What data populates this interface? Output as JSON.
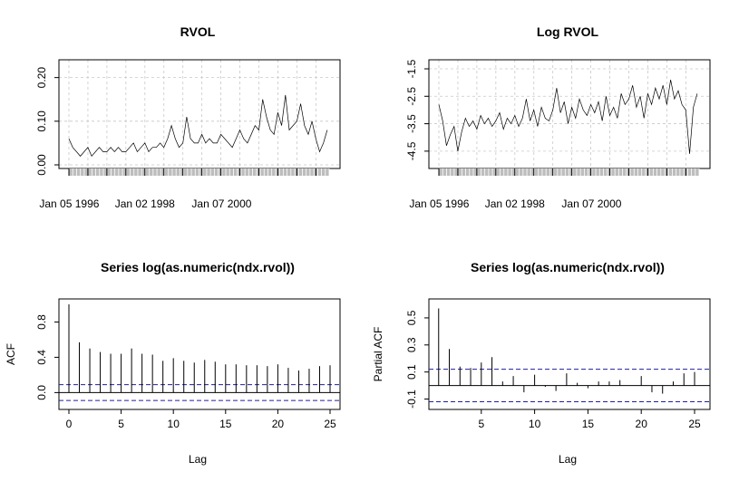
{
  "chart_data": [
    {
      "type": "line",
      "title": "RVOL",
      "xlabel": "",
      "ylabel": "",
      "ylim": [
        0,
        0.22
      ],
      "yticks": [
        "0.00",
        "0.10",
        "0.20"
      ],
      "ytick_values": [
        0.0,
        0.1,
        0.2
      ],
      "xtick_labels": [
        "Jan 05 1996",
        "Jan 02 1998",
        "Jan 07 2000"
      ],
      "xrange": [
        1996.0,
        2002.85
      ],
      "xtick_values": [
        1996.01,
        1998.0,
        2000.02
      ],
      "grid": true,
      "series": [
        {
          "x": [
            1996.0,
            1996.1,
            1996.2,
            1996.3,
            1996.4,
            1996.5,
            1996.6,
            1996.7,
            1996.8,
            1996.9,
            1997.0,
            1997.1,
            1997.2,
            1997.3,
            1997.4,
            1997.5,
            1997.6,
            1997.7,
            1997.8,
            1997.9,
            1998.0,
            1998.1,
            1998.2,
            1998.3,
            1998.4,
            1998.5,
            1998.6,
            1998.7,
            1998.8,
            1998.9,
            1999.0,
            1999.1,
            1999.2,
            1999.3,
            1999.4,
            1999.5,
            1999.6,
            1999.7,
            1999.8,
            1999.9,
            2000.0,
            2000.1,
            2000.2,
            2000.3,
            2000.4,
            2000.5,
            2000.6,
            2000.7,
            2000.8,
            2000.9,
            2001.0,
            2001.1,
            2001.2,
            2001.3,
            2001.4,
            2001.5,
            2001.6,
            2001.7,
            2001.8,
            2001.9,
            2002.0,
            2002.1,
            2002.2,
            2002.3,
            2002.4,
            2002.5,
            2002.6,
            2002.7,
            2002.8
          ],
          "values": [
            0.06,
            0.04,
            0.03,
            0.02,
            0.03,
            0.04,
            0.02,
            0.03,
            0.04,
            0.03,
            0.03,
            0.04,
            0.03,
            0.04,
            0.03,
            0.03,
            0.04,
            0.05,
            0.03,
            0.04,
            0.05,
            0.03,
            0.04,
            0.04,
            0.05,
            0.04,
            0.06,
            0.09,
            0.06,
            0.04,
            0.05,
            0.11,
            0.06,
            0.05,
            0.05,
            0.07,
            0.05,
            0.06,
            0.05,
            0.05,
            0.07,
            0.06,
            0.05,
            0.04,
            0.06,
            0.08,
            0.06,
            0.05,
            0.07,
            0.09,
            0.08,
            0.15,
            0.11,
            0.08,
            0.07,
            0.12,
            0.09,
            0.16,
            0.08,
            0.09,
            0.1,
            0.14,
            0.09,
            0.07,
            0.1,
            0.06,
            0.03,
            0.05,
            0.08
          ]
        }
      ]
    },
    {
      "type": "line",
      "title": "Log RVOL",
      "xlabel": "",
      "ylabel": "",
      "ylim": [
        -5.0,
        -1.5
      ],
      "yticks": [
        "-4.5",
        "-3.5",
        "-2.5",
        "-1.5"
      ],
      "ytick_values": [
        -4.5,
        -3.5,
        -2.5,
        -1.5
      ],
      "xtick_labels": [
        "Jan 05 1996",
        "Jan 02 1998",
        "Jan 07 2000"
      ],
      "xrange": [
        1996.0,
        2002.85
      ],
      "xtick_values": [
        1996.01,
        1998.0,
        2000.02
      ],
      "grid": true,
      "series": [
        {
          "x": [
            1996.0,
            1996.1,
            1996.2,
            1996.3,
            1996.4,
            1996.5,
            1996.6,
            1996.7,
            1996.8,
            1996.9,
            1997.0,
            1997.1,
            1997.2,
            1997.3,
            1997.4,
            1997.5,
            1997.6,
            1997.7,
            1997.8,
            1997.9,
            1998.0,
            1998.1,
            1998.2,
            1998.3,
            1998.4,
            1998.5,
            1998.6,
            1998.7,
            1998.8,
            1998.9,
            1999.0,
            1999.1,
            1999.2,
            1999.3,
            1999.4,
            1999.5,
            1999.6,
            1999.7,
            1999.8,
            1999.9,
            2000.0,
            2000.1,
            2000.2,
            2000.3,
            2000.4,
            2000.5,
            2000.6,
            2000.7,
            2000.8,
            2000.9,
            2001.0,
            2001.1,
            2001.2,
            2001.3,
            2001.4,
            2001.5,
            2001.6,
            2001.7,
            2001.8,
            2001.9,
            2002.0,
            2002.1,
            2002.2,
            2002.3,
            2002.4,
            2002.5,
            2002.6,
            2002.7,
            2002.8
          ],
          "values": [
            -2.8,
            -3.4,
            -4.3,
            -3.9,
            -3.6,
            -4.5,
            -3.8,
            -3.3,
            -3.6,
            -3.4,
            -3.7,
            -3.2,
            -3.5,
            -3.3,
            -3.6,
            -3.4,
            -3.1,
            -3.7,
            -3.3,
            -3.5,
            -3.2,
            -3.6,
            -3.3,
            -2.6,
            -3.4,
            -3.0,
            -3.6,
            -2.9,
            -3.3,
            -3.4,
            -3.0,
            -2.2,
            -3.1,
            -2.7,
            -3.5,
            -2.9,
            -3.3,
            -2.6,
            -3.0,
            -3.2,
            -2.8,
            -3.1,
            -2.7,
            -3.4,
            -2.5,
            -3.2,
            -2.9,
            -3.3,
            -2.4,
            -2.8,
            -2.6,
            -2.1,
            -2.9,
            -2.5,
            -3.3,
            -2.4,
            -2.8,
            -2.2,
            -2.6,
            -2.1,
            -2.8,
            -1.9,
            -2.6,
            -2.3,
            -2.8,
            -3.0,
            -4.6,
            -2.9,
            -2.4
          ]
        }
      ]
    },
    {
      "type": "bar",
      "title": "Series  log(as.numeric(ndx.rvol))",
      "xlabel": "Lag",
      "ylabel": "ACF",
      "xlim": [
        0,
        25
      ],
      "ylim": [
        -0.15,
        1.0
      ],
      "xticks": [
        "0",
        "5",
        "10",
        "15",
        "20",
        "25"
      ],
      "xtick_values": [
        0,
        5,
        10,
        15,
        20,
        25
      ],
      "yticks": [
        "0.0",
        "0.4",
        "0.8"
      ],
      "ytick_values": [
        0.0,
        0.4,
        0.8
      ],
      "lags": [
        0,
        1,
        2,
        3,
        4,
        5,
        6,
        7,
        8,
        9,
        10,
        11,
        12,
        13,
        14,
        15,
        16,
        17,
        18,
        19,
        20,
        21,
        22,
        23,
        24,
        25
      ],
      "values": [
        1.0,
        0.57,
        0.5,
        0.46,
        0.44,
        0.44,
        0.5,
        0.44,
        0.43,
        0.36,
        0.39,
        0.36,
        0.34,
        0.37,
        0.35,
        0.32,
        0.32,
        0.31,
        0.31,
        0.3,
        0.32,
        0.28,
        0.25,
        0.27,
        0.3,
        0.31
      ],
      "confidence": [
        0.09,
        -0.09
      ]
    },
    {
      "type": "bar",
      "title": "Series  log(as.numeric(ndx.rvol))",
      "xlabel": "Lag",
      "ylabel": "Partial ACF",
      "xlim": [
        0,
        25
      ],
      "ylim": [
        -0.15,
        0.6
      ],
      "xticks": [
        "5",
        "10",
        "15",
        "20",
        "25"
      ],
      "xtick_values": [
        5,
        10,
        15,
        20,
        25
      ],
      "yticks": [
        "-0.1",
        "0.1",
        "0.3",
        "0.5"
      ],
      "ytick_values": [
        -0.1,
        0.1,
        0.3,
        0.5
      ],
      "lags": [
        1,
        2,
        3,
        4,
        5,
        6,
        7,
        8,
        9,
        10,
        11,
        12,
        13,
        14,
        15,
        16,
        17,
        18,
        19,
        20,
        21,
        22,
        23,
        24,
        25
      ],
      "values": [
        0.57,
        0.27,
        0.14,
        0.13,
        0.17,
        0.21,
        0.03,
        0.07,
        -0.05,
        0.08,
        -0.01,
        -0.04,
        0.09,
        0.02,
        -0.02,
        0.03,
        0.03,
        0.04,
        0.0,
        0.07,
        -0.05,
        -0.06,
        0.03,
        0.09,
        0.1
      ],
      "confidence": [
        0.12,
        -0.12
      ]
    }
  ]
}
